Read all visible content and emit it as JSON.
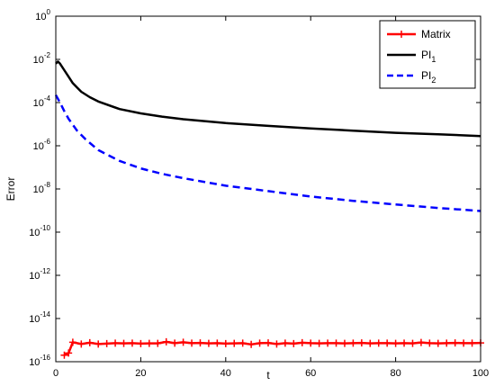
{
  "chart_data": {
    "type": "line",
    "xlabel": "t",
    "ylabel": "Error",
    "xlim": [
      0,
      100
    ],
    "ylim_exponent": [
      -16,
      0
    ],
    "yscale": "log",
    "x_ticks": [
      "0",
      "20",
      "40",
      "60",
      "80",
      "100"
    ],
    "y_tick_base": "10",
    "y_tick_exponents": [
      "0",
      "-2",
      "-4",
      "-6",
      "-8",
      "-10",
      "-12",
      "-14",
      "-16"
    ],
    "grid": false,
    "legend_position": "top-right",
    "series": [
      {
        "name": "Matrix",
        "color": "#ff0000",
        "style": "solid-plus-markers",
        "x": [
          2,
          3,
          4,
          6,
          8,
          10,
          12,
          14,
          16,
          18,
          20,
          22,
          24,
          26,
          28,
          30,
          32,
          34,
          36,
          38,
          40,
          42,
          44,
          46,
          48,
          50,
          52,
          54,
          56,
          58,
          60,
          62,
          64,
          66,
          68,
          70,
          72,
          74,
          76,
          78,
          80,
          82,
          84,
          86,
          88,
          90,
          92,
          94,
          96,
          98,
          100
        ],
        "y_exp": [
          -15.7,
          -15.6,
          -15.1,
          -15.18,
          -15.12,
          -15.18,
          -15.16,
          -15.14,
          -15.15,
          -15.14,
          -15.16,
          -15.15,
          -15.15,
          -15.08,
          -15.14,
          -15.1,
          -15.14,
          -15.13,
          -15.15,
          -15.14,
          -15.16,
          -15.15,
          -15.14,
          -15.2,
          -15.14,
          -15.13,
          -15.18,
          -15.14,
          -15.16,
          -15.12,
          -15.14,
          -15.15,
          -15.14,
          -15.14,
          -15.15,
          -15.14,
          -15.13,
          -15.15,
          -15.14,
          -15.14,
          -15.15,
          -15.14,
          -15.15,
          -15.11,
          -15.14,
          -15.15,
          -15.14,
          -15.13,
          -15.14,
          -15.14,
          -15.13
        ]
      },
      {
        "name": "PI_1",
        "name_main": "PI",
        "name_sub": "1",
        "color": "#000000",
        "style": "solid",
        "x": [
          0,
          0.5,
          1,
          2,
          3,
          4,
          5,
          6,
          8,
          10,
          15,
          20,
          25,
          30,
          40,
          50,
          60,
          70,
          80,
          90,
          100
        ],
        "y_exp": [
          -2.2,
          -2.1,
          -2.2,
          -2.5,
          -2.8,
          -3.1,
          -3.3,
          -3.5,
          -3.75,
          -3.95,
          -4.3,
          -4.5,
          -4.65,
          -4.77,
          -4.95,
          -5.08,
          -5.2,
          -5.3,
          -5.4,
          -5.47,
          -5.55
        ]
      },
      {
        "name": "PI_2",
        "name_main": "PI",
        "name_sub": "2",
        "color": "#0000ff",
        "style": "dashed",
        "x": [
          0,
          1,
          2,
          3,
          5,
          7,
          10,
          15,
          20,
          25,
          30,
          40,
          50,
          60,
          70,
          80,
          90,
          100
        ],
        "y_exp": [
          -3.65,
          -4.0,
          -4.4,
          -4.75,
          -5.3,
          -5.7,
          -6.2,
          -6.7,
          -7.05,
          -7.3,
          -7.5,
          -7.85,
          -8.1,
          -8.35,
          -8.55,
          -8.72,
          -8.88,
          -9.02
        ]
      }
    ]
  }
}
